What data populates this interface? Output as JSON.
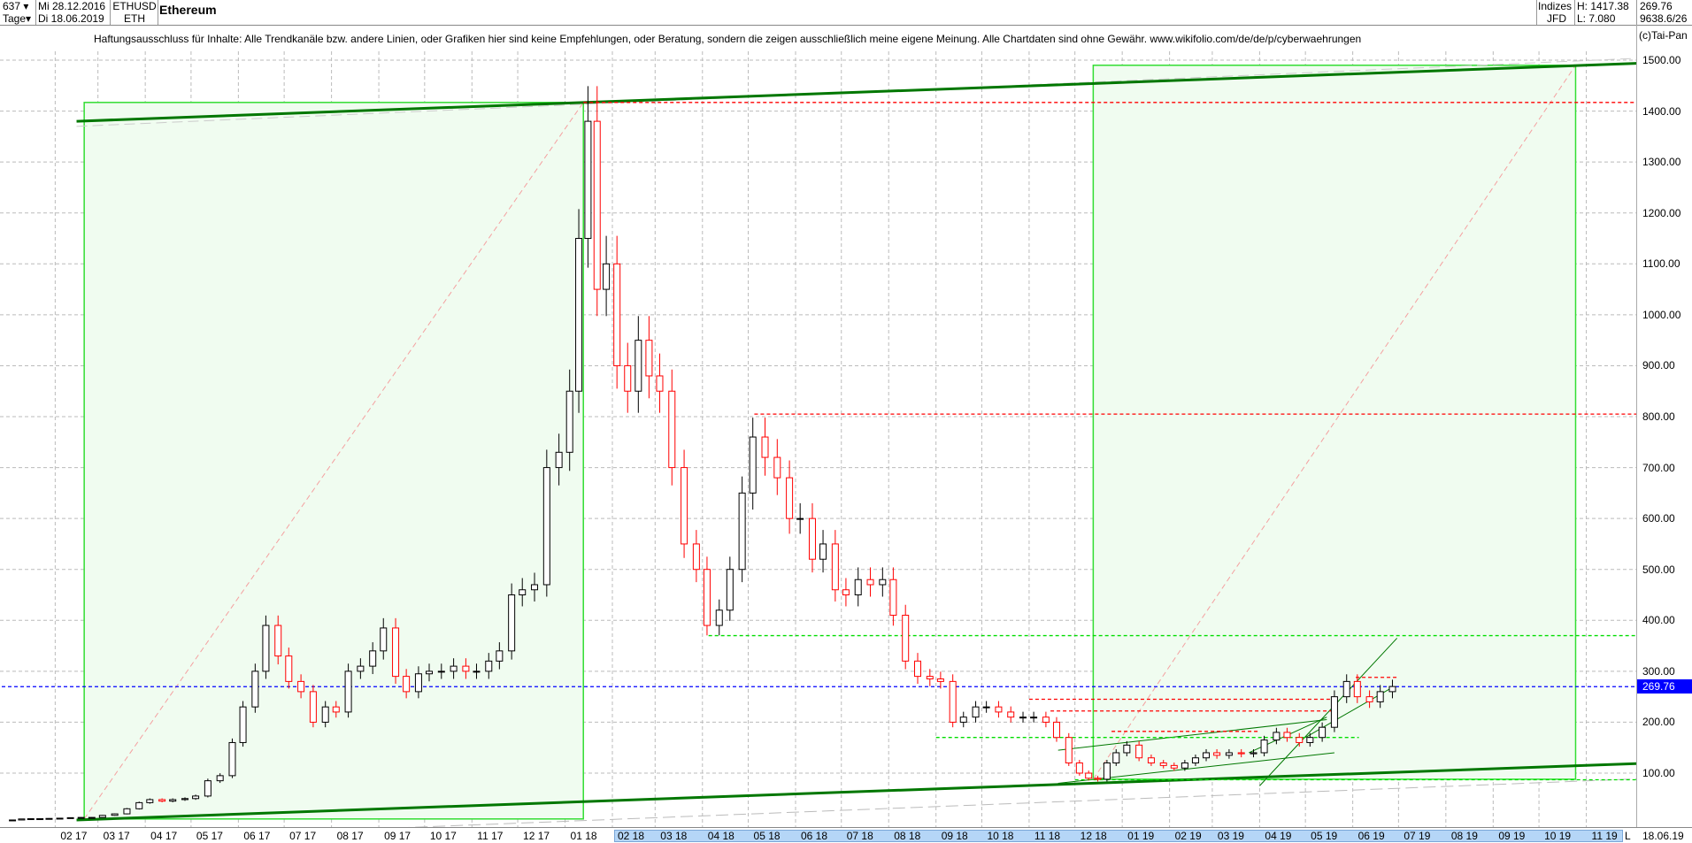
{
  "header": {
    "bars_count": "637",
    "period": "Tage",
    "date_from": "Mi 28.12.2016",
    "date_to": "Di 18.06.2019",
    "symbol": "ETHUSD",
    "symbol_short": "ETH",
    "name": "Ethereum",
    "market": "Indizes",
    "source": "JFD",
    "high": "H: 1417.38",
    "low": "L: 7.080",
    "last": "269.76",
    "extra": "9638.6/26"
  },
  "disclaimer": "Haftungsausschluss für Inhalte: Alle Trendkanäle bzw. andere Linien, oder Grafiken hier sind keine Empfehlungen, oder Beratung, sondern die zeigen ausschließlich meine eigene Meinung. Alle Chartdaten sind ohne Gewähr.  www.wikifolio.com/de/de/p/cyberwaehrungen",
  "copyright": "(c)Tai-Pan",
  "footer": {
    "mode": "L",
    "last_date": "18.06.19"
  },
  "colors": {
    "up": "#000000",
    "down": "#ff0000",
    "box_fill": "#f0fcf0",
    "box_line": "#33dd33",
    "trend": "#007700",
    "last_price": "#0000ff"
  },
  "chart_data": {
    "type": "candlestick",
    "title": "Ethereum",
    "y_scale": "linear",
    "ylim": [
      0,
      1550
    ],
    "y_ticks": [
      "100.00",
      "200.00",
      "300.00",
      "400.00",
      "500.00",
      "600.00",
      "700.00",
      "800.00",
      "900.00",
      "1000.00",
      "1100.00",
      "1200.00",
      "1300.00",
      "1400.00",
      "1500.00"
    ],
    "x_ticks": [
      "02 17",
      "03 17",
      "04 17",
      "05 17",
      "06 17",
      "07 17",
      "08 17",
      "09 17",
      "10 17",
      "11 17",
      "12 17",
      "01 18",
      "02 18",
      "03 18",
      "04 18",
      "05 18",
      "06 18",
      "07 18",
      "08 18",
      "09 18",
      "10 18",
      "11 18",
      "12 18",
      "01 19",
      "02 19",
      "03 19",
      "04 19",
      "05 19",
      "06 19",
      "07 19",
      "08 19",
      "09 19",
      "10 19",
      "11 19"
    ],
    "grid": true,
    "last_price": 269.76,
    "weekly_close_by_month": [
      {
        "month": "2017-01",
        "close": [
          8,
          10,
          10.5,
          10.5,
          11
        ]
      },
      {
        "month": "2017-02",
        "close": [
          11.5,
          12.5,
          13,
          13
        ]
      },
      {
        "month": "2017-03",
        "close": [
          17,
          20,
          30,
          42
        ]
      },
      {
        "month": "2017-04",
        "close": [
          48,
          45,
          48,
          50
        ]
      },
      {
        "month": "2017-05",
        "close": [
          55,
          85,
          95,
          160
        ]
      },
      {
        "month": "2017-06",
        "close": [
          230,
          300,
          390,
          330
        ]
      },
      {
        "month": "2017-07",
        "close": [
          280,
          260,
          200,
          230
        ]
      },
      {
        "month": "2017-08",
        "close": [
          220,
          300,
          310,
          340
        ]
      },
      {
        "month": "2017-09",
        "close": [
          385,
          290,
          260,
          295
        ]
      },
      {
        "month": "2017-10",
        "close": [
          300,
          300,
          310,
          300
        ]
      },
      {
        "month": "2017-11",
        "close": [
          300,
          320,
          340,
          450
        ]
      },
      {
        "month": "2017-12",
        "close": [
          460,
          470,
          700,
          730
        ]
      },
      {
        "month": "2018-01",
        "close": [
          850,
          1150,
          1380,
          1050,
          1100
        ]
      },
      {
        "month": "2018-02",
        "close": [
          900,
          850,
          950,
          880
        ]
      },
      {
        "month": "2018-03",
        "close": [
          850,
          700,
          550,
          500
        ]
      },
      {
        "month": "2018-04",
        "close": [
          390,
          420,
          500,
          650
        ]
      },
      {
        "month": "2018-05",
        "close": [
          760,
          720,
          680,
          600
        ]
      },
      {
        "month": "2018-06",
        "close": [
          600,
          520,
          550,
          460
        ]
      },
      {
        "month": "2018-07",
        "close": [
          450,
          480,
          470,
          480
        ]
      },
      {
        "month": "2018-08",
        "close": [
          410,
          320,
          290,
          285
        ]
      },
      {
        "month": "2018-09",
        "close": [
          280,
          200,
          210,
          230
        ]
      },
      {
        "month": "2018-10",
        "close": [
          230,
          220,
          210,
          210
        ]
      },
      {
        "month": "2018-11",
        "close": [
          210,
          200,
          170,
          120
        ]
      },
      {
        "month": "2018-12",
        "close": [
          100,
          90,
          88,
          120,
          140
        ]
      },
      {
        "month": "2019-01",
        "close": [
          155,
          130,
          120,
          115
        ]
      },
      {
        "month": "2019-02",
        "close": [
          110,
          120,
          130,
          140
        ]
      },
      {
        "month": "2019-03",
        "close": [
          135,
          140,
          138,
          140
        ]
      },
      {
        "month": "2019-04",
        "close": [
          165,
          180,
          170,
          160
        ]
      },
      {
        "month": "2019-05",
        "close": [
          170,
          190,
          250,
          280
        ]
      },
      {
        "month": "2019-06",
        "close": [
          250,
          240,
          260,
          270
        ]
      }
    ],
    "annotations": {
      "boxes": [
        {
          "from": "2017-02-20",
          "to": "2018-01-13",
          "low": 10,
          "high": 1417
        },
        {
          "from": "2018-12-13",
          "to": "2019-10-25",
          "low": 88,
          "high": 1490
        }
      ],
      "diagonals": [
        {
          "from": [
            "2017-02-20",
            10
          ],
          "to": [
            "2018-01-13",
            1417
          ]
        },
        {
          "from": [
            "2018-12-13",
            88
          ],
          "to": [
            "2019-10-25",
            1490
          ]
        }
      ],
      "trendlines_thick": [
        {
          "from": [
            "2017-02-15",
            1380
          ],
          "to": [
            "2019-12-15",
            1495
          ]
        },
        {
          "from": [
            "2017-02-15",
            8
          ],
          "to": [
            "2019-12-15",
            120
          ]
        }
      ],
      "trendlines_thin": [
        {
          "from": [
            "2018-11-20",
            145
          ],
          "to": [
            "2019-05-15",
            205
          ]
        },
        {
          "from": [
            "2018-11-20",
            80
          ],
          "to": [
            "2019-05-20",
            140
          ]
        },
        {
          "from": [
            "2019-04-01",
            75
          ],
          "to": [
            "2019-06-30",
            365
          ]
        },
        {
          "from": [
            "2019-05-01",
            170
          ],
          "to": [
            "2019-06-25",
            265
          ]
        },
        {
          "from": [
            "2019-03-25",
            140
          ],
          "to": [
            "2019-05-15",
            210
          ]
        }
      ],
      "hlines": [
        {
          "price": 1417,
          "from": "2018-01-13",
          "to": "2019-12-15",
          "color": "#ff0000"
        },
        {
          "price": 805,
          "from": "2018-05-05",
          "to": "2019-12-15",
          "color": "#ff0000"
        },
        {
          "price": 370,
          "from": "2018-04-05",
          "to": "2019-12-15",
          "color": "#00dd00"
        },
        {
          "price": 170,
          "from": "2018-09-01",
          "to": "2019-06-05",
          "color": "#00dd00"
        },
        {
          "price": 87,
          "from": "2018-12-01",
          "to": "2019-12-15",
          "color": "#00dd00"
        },
        {
          "price": 245,
          "from": "2018-11-01",
          "to": "2019-05-20",
          "color": "#ff0000"
        },
        {
          "price": 222,
          "from": "2018-11-15",
          "to": "2019-05-20",
          "color": "#ff0000"
        },
        {
          "price": 182,
          "from": "2018-12-25",
          "to": "2019-04-01",
          "color": "#ff0000"
        },
        {
          "price": 288,
          "from": "2019-06-03",
          "to": "2019-06-30",
          "color": "#ff0000"
        },
        {
          "price": 269.76,
          "from": "2016-12-28",
          "to": "2019-12-15",
          "color": "#0000ff"
        }
      ]
    }
  }
}
